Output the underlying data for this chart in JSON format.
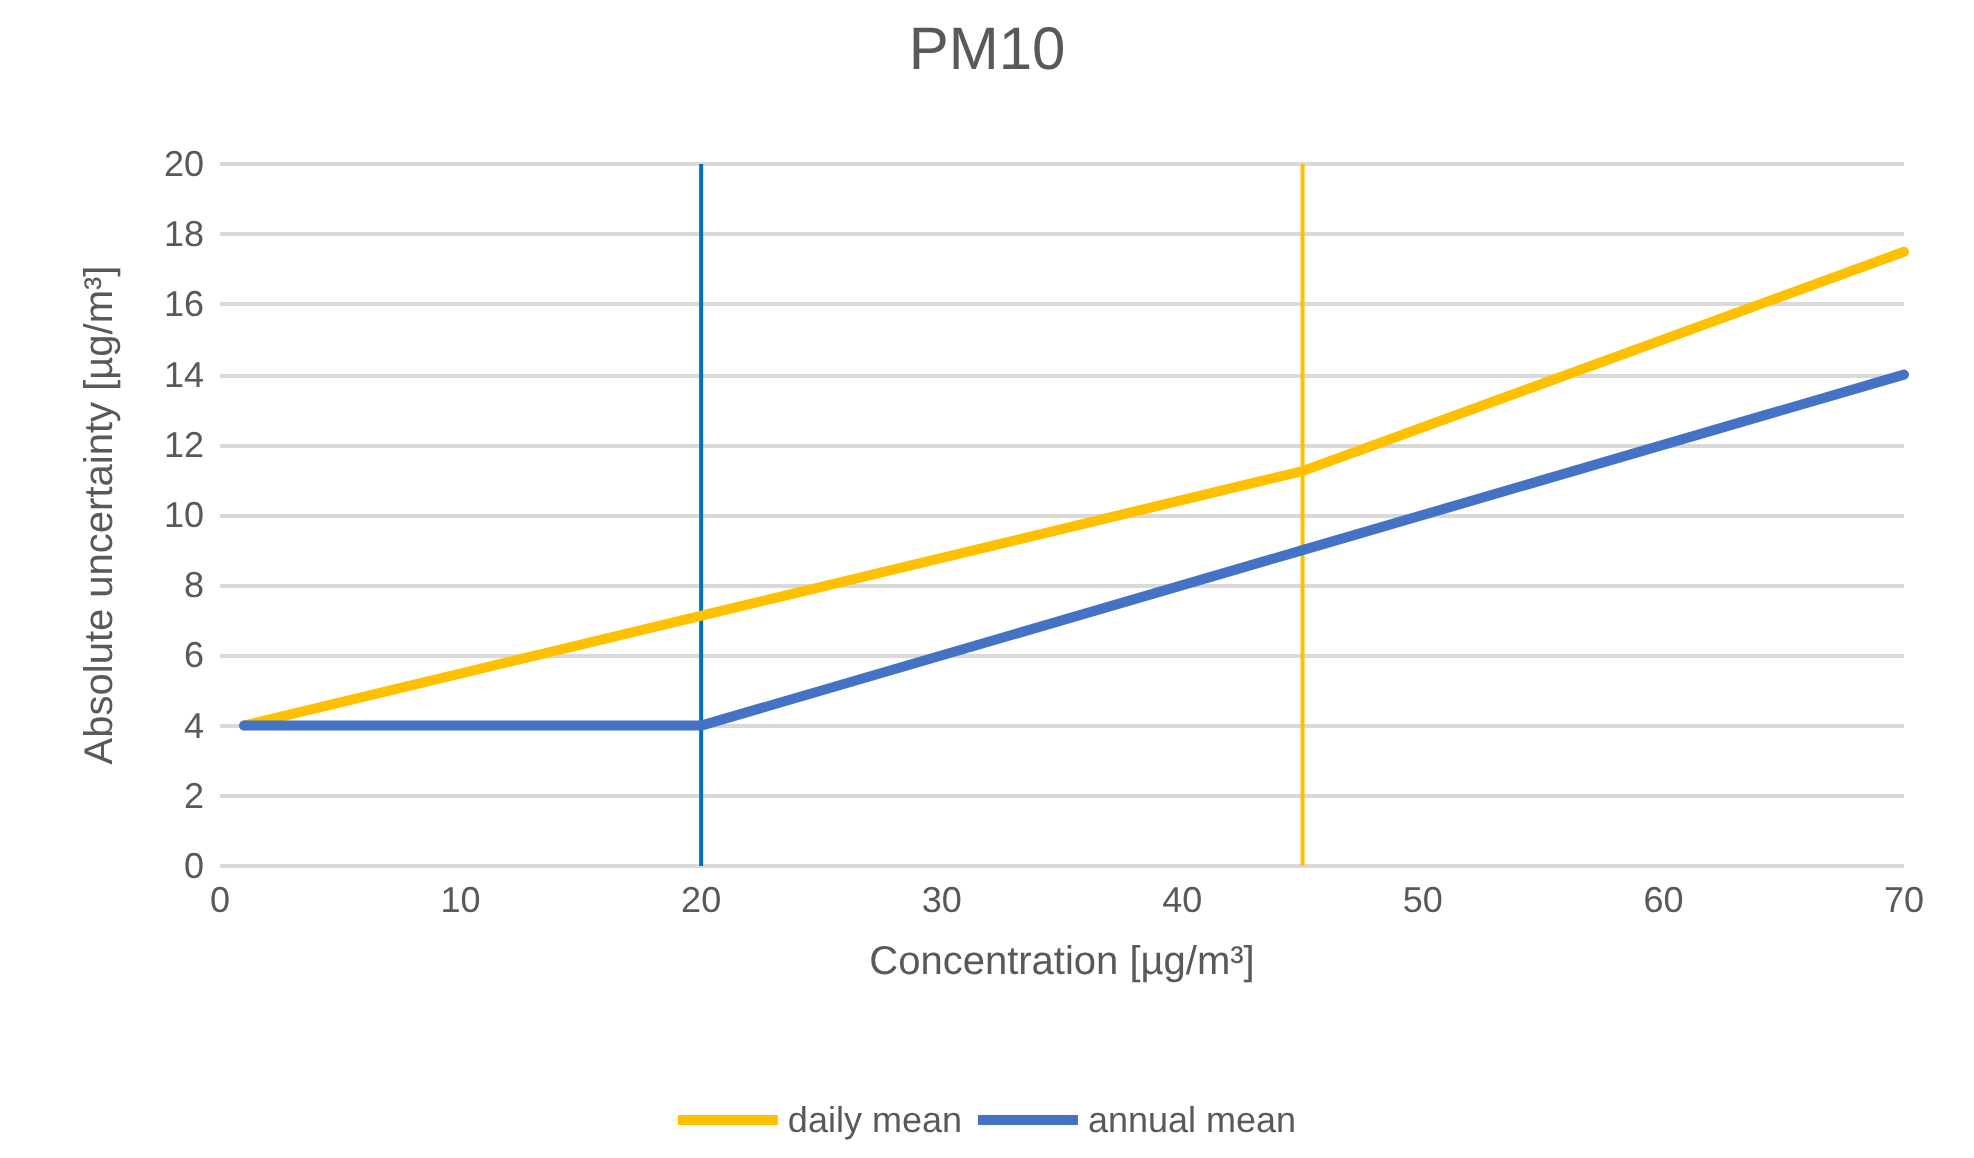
{
  "chart_data": {
    "type": "line",
    "title": "PM10",
    "xlabel": "Concentration [µg/m³]",
    "ylabel": "Absolute uncertainty [µg/m³]",
    "series": [
      {
        "name": "daily mean",
        "color": "#ffc000",
        "x": [
          1,
          45,
          70
        ],
        "values": [
          4,
          11.25,
          17.5
        ]
      },
      {
        "name": "annual mean",
        "color": "#4472c4",
        "x": [
          1,
          20,
          45,
          70
        ],
        "values": [
          4,
          4,
          9,
          14
        ]
      }
    ],
    "ref_lines": [
      {
        "axis": "x",
        "value": 20,
        "color": "#0070c0"
      },
      {
        "axis": "x",
        "value": 45,
        "color": "#ffc000"
      }
    ],
    "xlim": [
      0,
      70
    ],
    "xticks": [
      0,
      10,
      20,
      30,
      40,
      50,
      60,
      70
    ],
    "ylim": [
      0,
      20
    ],
    "yticks": [
      0,
      2,
      4,
      6,
      8,
      10,
      12,
      14,
      16,
      18,
      20
    ],
    "grid": "y",
    "legend": "bottom",
    "marker": "none",
    "line_style": "solid"
  }
}
